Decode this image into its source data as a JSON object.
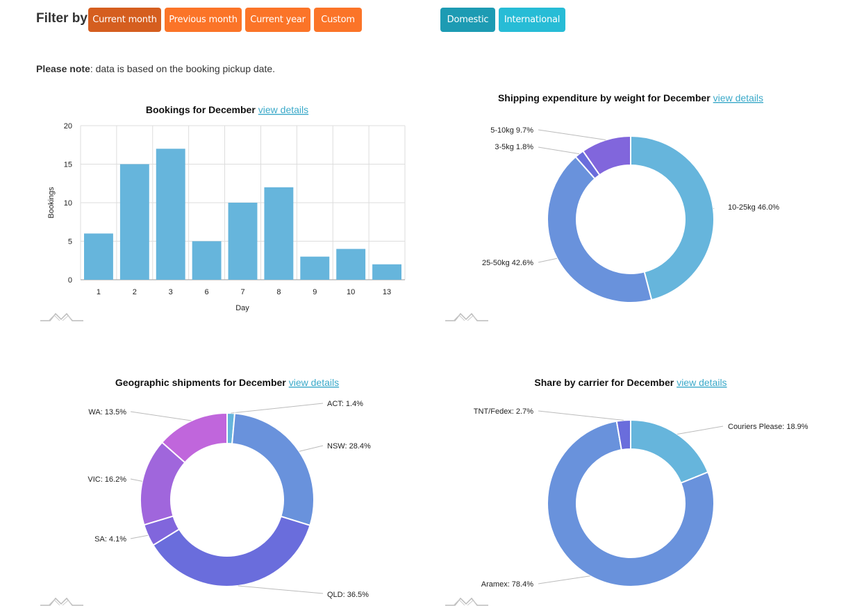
{
  "filter": {
    "label": "Filter by",
    "period_buttons": [
      "Current month",
      "Previous month",
      "Current year",
      "Custom"
    ],
    "scope_buttons": [
      "Domestic",
      "International"
    ],
    "active_period": "Current month",
    "active_scope": "Domestic"
  },
  "note": {
    "bold": "Please note",
    "text": ": data is based on the booking pickup date."
  },
  "link_text": "view details",
  "colors": {
    "orange": "#fb7428",
    "orange_active": "#d55e1f",
    "teal": "#2aaac4",
    "link": "#3aa9c9",
    "bar": "#66b5dc"
  },
  "chart_data": [
    {
      "type": "bar",
      "title": "Bookings for December",
      "xlabel": "Day",
      "ylabel": "Bookings",
      "categories": [
        "1",
        "2",
        "3",
        "6",
        "7",
        "8",
        "9",
        "10",
        "13"
      ],
      "values": [
        6,
        15,
        17,
        5,
        10,
        12,
        3,
        4,
        2
      ],
      "ylim": [
        0,
        20
      ],
      "yticks": [
        0,
        5,
        10,
        15,
        20
      ],
      "grid": true
    },
    {
      "type": "pie",
      "title": "Shipping expenditure by weight for December",
      "slices": [
        {
          "label": "10-25kg",
          "value": 46.0,
          "text": "10-25kg 46.0%",
          "color": "#66b5dc"
        },
        {
          "label": "25-50kg",
          "value": 42.6,
          "text": "25-50kg 42.6%",
          "color": "#6992dc"
        },
        {
          "label": "3-5kg",
          "value": 1.8,
          "text": "3-5kg 1.8%",
          "color": "#6a6ddc"
        },
        {
          "label": "5-10kg",
          "value": 9.7,
          "text": "5-10kg 9.7%",
          "color": "#8166dc"
        }
      ]
    },
    {
      "type": "pie",
      "title": "Geographic shipments for December",
      "slices": [
        {
          "label": "ACT",
          "value": 1.4,
          "text": "ACT: 1.4%",
          "color": "#66b5dc"
        },
        {
          "label": "NSW",
          "value": 28.4,
          "text": "NSW: 28.4%",
          "color": "#6992dc"
        },
        {
          "label": "QLD",
          "value": 36.5,
          "text": "QLD: 36.5%",
          "color": "#6a6ddc"
        },
        {
          "label": "SA",
          "value": 4.1,
          "text": "SA: 4.1%",
          "color": "#8166dc"
        },
        {
          "label": "VIC",
          "value": 16.2,
          "text": "VIC: 16.2%",
          "color": "#a066dc"
        },
        {
          "label": "WA",
          "value": 13.5,
          "text": "WA: 13.5%",
          "color": "#c066dc"
        }
      ]
    },
    {
      "type": "pie",
      "title": "Share by carrier for December",
      "slices": [
        {
          "label": "Couriers Please",
          "value": 18.9,
          "text": "Couriers Please: 18.9%",
          "color": "#66b5dc"
        },
        {
          "label": "Aramex",
          "value": 78.4,
          "text": "Aramex: 78.4%",
          "color": "#6992dc"
        },
        {
          "label": "TNT/Fedex",
          "value": 2.7,
          "text": "TNT/Fedex: 2.7%",
          "color": "#6a6ddc"
        }
      ]
    }
  ]
}
